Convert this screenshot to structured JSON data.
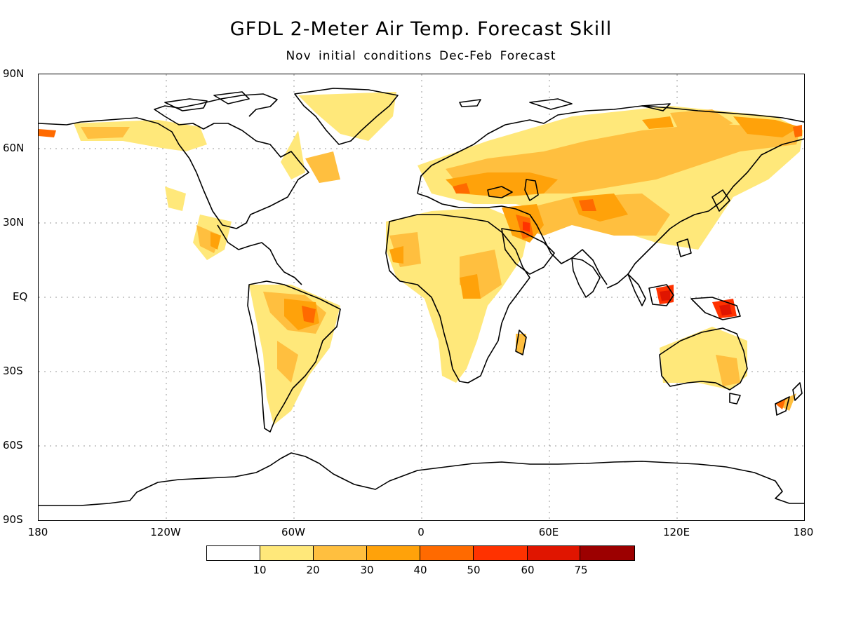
{
  "title": "GFDL 2-Meter Air Temp. Forecast Skill",
  "subtitle": "Nov initial conditions   Dec-Feb Forecast",
  "lat_labels": [
    "90N",
    "60N",
    "30N",
    "EQ",
    "30S",
    "60S",
    "90S"
  ],
  "lon_labels": [
    "180",
    "120W",
    "60W",
    "0",
    "60E",
    "120E",
    "180"
  ],
  "colorbar": {
    "colors": [
      "#ffffff",
      "#ffe87a",
      "#ffbf3f",
      "#ffa20a",
      "#ff6a00",
      "#ff3200",
      "#e01500",
      "#9c0000"
    ],
    "labels": [
      "10",
      "20",
      "30",
      "40",
      "50",
      "60",
      "75"
    ]
  }
}
